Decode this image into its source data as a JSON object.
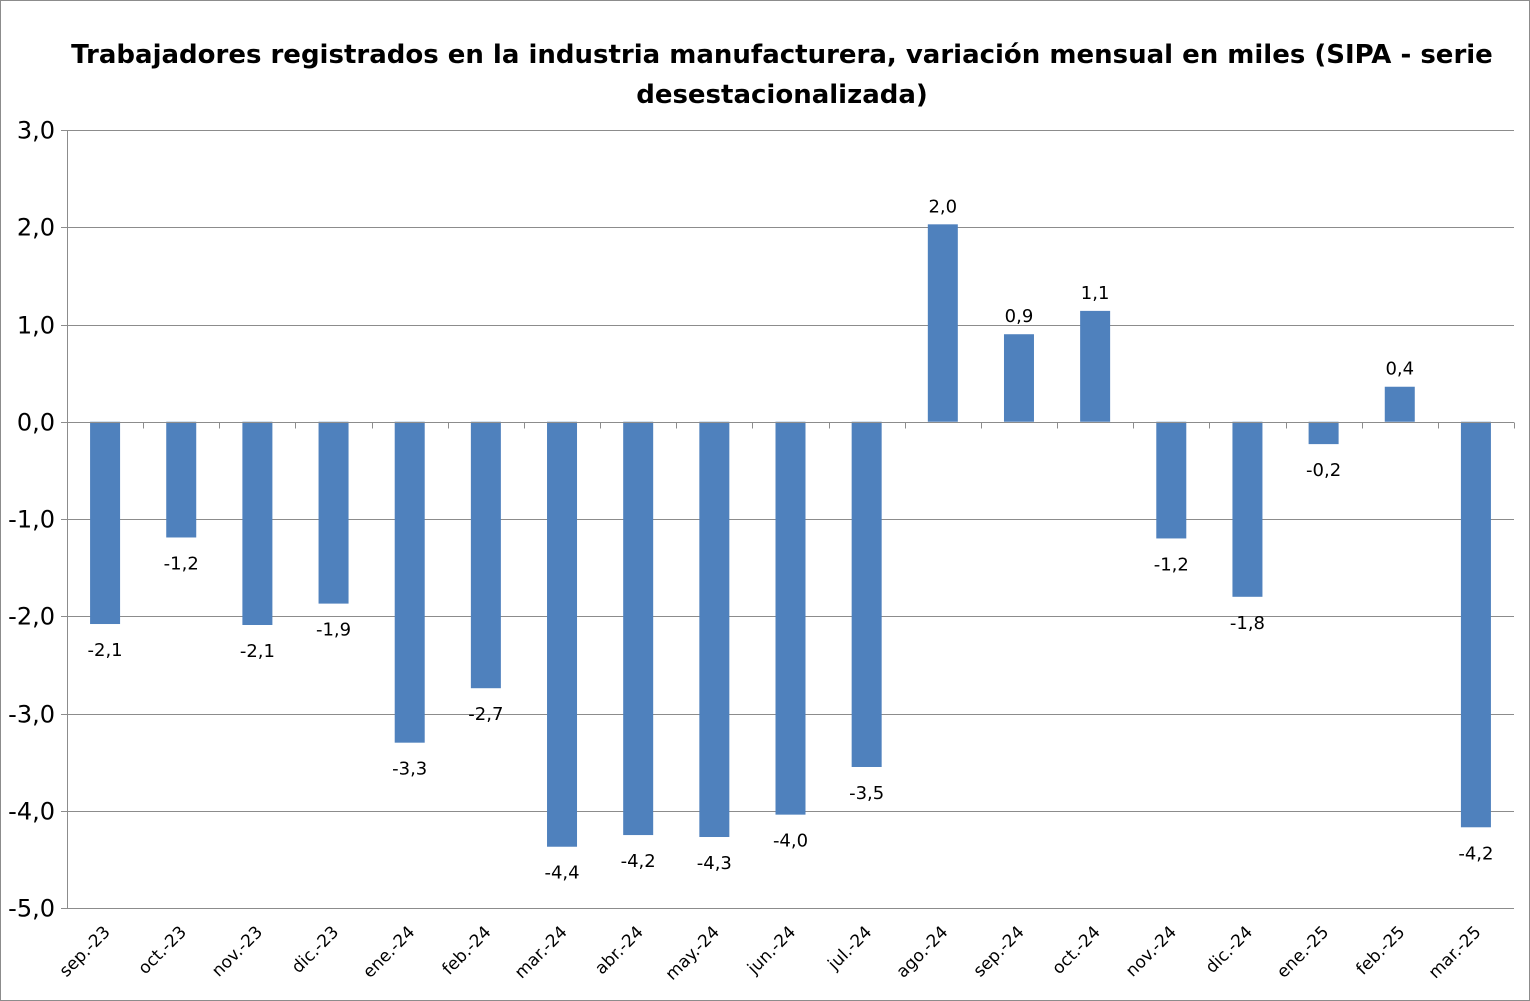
{
  "chart_data": {
    "type": "bar",
    "title": "Trabajadores registrados en la industria manufacturera, variación mensual en miles (SIPA - serie desestacionalizada)",
    "title_lines": [
      "Trabajadores registrados en la industria manufacturera, variación mensual en miles (SIPA - serie",
      "desestacionalizada)"
    ],
    "xlabel": "",
    "ylabel": "",
    "ylim": [
      -5.0,
      3.0
    ],
    "yticks": [
      3.0,
      2.0,
      1.0,
      0.0,
      -1.0,
      -2.0,
      -3.0,
      -4.0,
      -5.0
    ],
    "ytick_labels": [
      "3,0",
      "2,0",
      "1,0",
      "0,0",
      "-1,0",
      "-2,0",
      "-3,0",
      "-4,0",
      "-5,0"
    ],
    "grid": true,
    "legend": false,
    "bar_color": "#4f81bd",
    "categories": [
      "sep.-23",
      "oct.-23",
      "nov.-23",
      "dic.-23",
      "ene.-24",
      "feb.-24",
      "mar.-24",
      "abr.-24",
      "may.-24",
      "jun.-24",
      "jul.-24",
      "ago.-24",
      "sep.-24",
      "oct.-24",
      "nov.-24",
      "dic.-24",
      "ene.-25",
      "feb.-25",
      "mar.-25"
    ],
    "values": [
      -2.08,
      -1.19,
      -2.09,
      -1.87,
      -3.3,
      -2.74,
      -4.37,
      -4.25,
      -4.27,
      -4.04,
      -3.55,
      2.03,
      0.9,
      1.14,
      -1.2,
      -1.8,
      -0.23,
      0.36,
      -4.17
    ],
    "data_labels": [
      "-2,1",
      "-1,2",
      "-2,1",
      "-1,9",
      "-3,3",
      "-2,7",
      "-4,4",
      "-4,2",
      "-4,3",
      "-4,0",
      "-3,5",
      "2,0",
      "0,9",
      "1,1",
      "-1,2",
      "-1,8",
      "-0,2",
      "0,4",
      "-4,2"
    ]
  }
}
